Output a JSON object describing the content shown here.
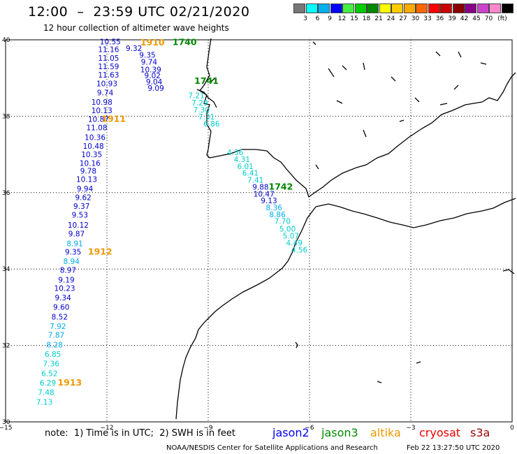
{
  "header": {
    "title": "12:00  –  23:59 UTC 02/21/2020",
    "subtitle": "12 hour collection of altimeter wave heights"
  },
  "legend": {
    "unit": "(ft)",
    "colors": [
      "#777777",
      "#00ffff",
      "#00b0f0",
      "#0000ff",
      "#44ee44",
      "#00cc00",
      "#008800",
      "#ffff00",
      "#ffcc00",
      "#ffaa00",
      "#ff6600",
      "#ff0000",
      "#cc0000",
      "#880000",
      "#880088",
      "#cc44cc",
      "#ff88cc",
      "#000000"
    ],
    "labels": [
      "3",
      "6",
      "9",
      "12",
      "15",
      "18",
      "21",
      "24",
      "27",
      "30",
      "33",
      "36",
      "39",
      "42",
      "45",
      "70"
    ]
  },
  "axes": {
    "x_ticks": [
      {
        "lon": -15,
        "label": "−15"
      },
      {
        "lon": -12,
        "label": "−12"
      },
      {
        "lon": -9,
        "label": "−9"
      },
      {
        "lon": -6,
        "label": "−6"
      },
      {
        "lon": -3,
        "label": "−3"
      },
      {
        "lon": 0,
        "label": "0"
      }
    ],
    "y_ticks": [
      {
        "lat": 40,
        "label": "40"
      },
      {
        "lat": 38,
        "label": "38"
      },
      {
        "lat": 36,
        "label": "36"
      },
      {
        "lat": 34,
        "label": "34"
      },
      {
        "lat": 32,
        "label": "32"
      },
      {
        "lat": 30,
        "label": "30"
      }
    ],
    "lon_range": [
      -15,
      0
    ],
    "lat_range": [
      30,
      40
    ],
    "grid": "dotted"
  },
  "tracks": [
    {
      "satellite": "jason2",
      "points": [
        {
          "lon": -11.9,
          "lat": 39.88,
          "v": "10.55",
          "c": "#0000cc"
        },
        {
          "lon": -11.2,
          "lat": 39.71,
          "v": "9.32",
          "c": "#0000cc"
        },
        {
          "lon": -11.95,
          "lat": 39.68,
          "v": "11.16",
          "c": "#0000cc"
        },
        {
          "lon": -10.8,
          "lat": 39.53,
          "v": "9.35",
          "c": "#0000cc"
        },
        {
          "lon": -11.95,
          "lat": 39.45,
          "v": "11.05",
          "c": "#0000cc"
        },
        {
          "lon": -10.75,
          "lat": 39.35,
          "v": "9.74",
          "c": "#0000cc"
        },
        {
          "lon": -11.95,
          "lat": 39.23,
          "v": "11.59",
          "c": "#0000cc"
        },
        {
          "lon": -10.7,
          "lat": 39.15,
          "v": "10.39",
          "c": "#0000cc"
        },
        {
          "lon": -11.95,
          "lat": 39.01,
          "v": "11.63",
          "c": "#0000cc"
        },
        {
          "lon": -10.65,
          "lat": 38.99,
          "v": "9.02",
          "c": "#0000cc"
        },
        {
          "lon": -10.6,
          "lat": 38.83,
          "v": "9.04",
          "c": "#0000cc"
        },
        {
          "lon": -12.0,
          "lat": 38.78,
          "v": "10.93",
          "c": "#0000cc"
        },
        {
          "lon": -10.55,
          "lat": 38.67,
          "v": "9.09",
          "c": "#0000cc"
        },
        {
          "lon": -12.05,
          "lat": 38.55,
          "v": "9.74",
          "c": "#0000cc"
        },
        {
          "lon": -12.15,
          "lat": 38.3,
          "v": "10.98",
          "c": "#0000cc"
        },
        {
          "lon": -12.15,
          "lat": 38.08,
          "v": "10.13",
          "c": "#0000cc"
        },
        {
          "lon": -12.25,
          "lat": 37.85,
          "v": "10.87",
          "c": "#0000cc"
        },
        {
          "lon": -12.3,
          "lat": 37.63,
          "v": "11.08",
          "c": "#0000cc"
        },
        {
          "lon": -12.35,
          "lat": 37.38,
          "v": "10.36",
          "c": "#0000cc"
        },
        {
          "lon": -12.4,
          "lat": 37.15,
          "v": "10.48",
          "c": "#0000cc"
        },
        {
          "lon": -12.45,
          "lat": 36.93,
          "v": "10.35",
          "c": "#0000cc"
        },
        {
          "lon": -12.5,
          "lat": 36.7,
          "v": "10.16",
          "c": "#0000cc"
        },
        {
          "lon": -12.55,
          "lat": 36.5,
          "v": "9.78",
          "c": "#0000cc"
        },
        {
          "lon": -12.6,
          "lat": 36.28,
          "v": "10.13",
          "c": "#0000cc"
        },
        {
          "lon": -12.65,
          "lat": 36.03,
          "v": "9.94",
          "c": "#0000cc"
        },
        {
          "lon": -12.7,
          "lat": 35.8,
          "v": "9.62",
          "c": "#0000cc"
        },
        {
          "lon": -12.75,
          "lat": 35.58,
          "v": "9.37",
          "c": "#0000cc"
        },
        {
          "lon": -12.8,
          "lat": 35.35,
          "v": "9.53",
          "c": "#0000cc"
        },
        {
          "lon": -12.85,
          "lat": 35.08,
          "v": "10.12",
          "c": "#0000cc"
        },
        {
          "lon": -12.9,
          "lat": 34.85,
          "v": "9.87",
          "c": "#0000cc"
        },
        {
          "lon": -12.95,
          "lat": 34.6,
          "v": "8.91",
          "c": "#00aaee"
        },
        {
          "lon": -13.0,
          "lat": 34.38,
          "v": "9.35",
          "c": "#0000cc"
        },
        {
          "lon": -13.05,
          "lat": 34.13,
          "v": "8.94",
          "c": "#00aaee"
        },
        {
          "lon": -13.15,
          "lat": 33.9,
          "v": "8.97",
          "c": "#0000cc"
        },
        {
          "lon": -13.2,
          "lat": 33.65,
          "v": "9.19",
          "c": "#0000cc"
        },
        {
          "lon": -13.25,
          "lat": 33.43,
          "v": "10.23",
          "c": "#0000cc"
        },
        {
          "lon": -13.3,
          "lat": 33.18,
          "v": "9.34",
          "c": "#0000cc"
        },
        {
          "lon": -13.35,
          "lat": 32.93,
          "v": "9.60",
          "c": "#0000cc"
        },
        {
          "lon": -13.4,
          "lat": 32.68,
          "v": "8.52",
          "c": "#0000cc"
        },
        {
          "lon": -13.45,
          "lat": 32.43,
          "v": "7.92",
          "c": "#00aaee"
        },
        {
          "lon": -13.5,
          "lat": 32.2,
          "v": "7.87",
          "c": "#00aaee"
        },
        {
          "lon": -13.55,
          "lat": 31.95,
          "v": "8.28",
          "c": "#00aaee"
        },
        {
          "lon": -13.6,
          "lat": 31.7,
          "v": "6.85",
          "c": "#00cccc"
        },
        {
          "lon": -13.65,
          "lat": 31.45,
          "v": "7.36",
          "c": "#00cccc"
        },
        {
          "lon": -13.7,
          "lat": 31.2,
          "v": "6.52",
          "c": "#00cccc"
        },
        {
          "lon": -13.75,
          "lat": 30.95,
          "v": "6.29",
          "c": "#00cccc"
        },
        {
          "lon": -13.8,
          "lat": 30.7,
          "v": "7.48",
          "c": "#00cccc"
        },
        {
          "lon": -13.85,
          "lat": 30.45,
          "v": "7.13",
          "c": "#00cccc"
        }
      ]
    },
    {
      "satellite": "jason3",
      "points": [
        {
          "lon": -9.35,
          "lat": 38.47,
          "v": "7.21",
          "c": "#00cccc"
        },
        {
          "lon": -9.25,
          "lat": 38.28,
          "v": "7.29",
          "c": "#00cccc"
        },
        {
          "lon": -9.2,
          "lat": 38.1,
          "v": "7.30",
          "c": "#00cccc"
        },
        {
          "lon": -9.05,
          "lat": 37.92,
          "v": "7.31",
          "c": "#00cccc"
        },
        {
          "lon": -8.9,
          "lat": 37.73,
          "v": "6.86",
          "c": "#00cccc"
        },
        {
          "lon": -8.2,
          "lat": 36.98,
          "v": "4.36",
          "c": "#00cccc"
        },
        {
          "lon": -8.0,
          "lat": 36.8,
          "v": "4.31",
          "c": "#00cccc"
        },
        {
          "lon": -7.9,
          "lat": 36.62,
          "v": "6.01",
          "c": "#00cccc"
        },
        {
          "lon": -7.75,
          "lat": 36.44,
          "v": "6.41",
          "c": "#00cccc"
        },
        {
          "lon": -7.6,
          "lat": 36.26,
          "v": "7.41",
          "c": "#00cccc"
        },
        {
          "lon": -7.45,
          "lat": 36.08,
          "v": "9.88",
          "c": "#0000cc"
        },
        {
          "lon": -7.35,
          "lat": 35.9,
          "v": "10.47",
          "c": "#0000cc"
        },
        {
          "lon": -7.2,
          "lat": 35.72,
          "v": "9.13",
          "c": "#0000cc"
        },
        {
          "lon": -7.05,
          "lat": 35.54,
          "v": "8.36",
          "c": "#00aaee"
        },
        {
          "lon": -6.95,
          "lat": 35.36,
          "v": "8.86",
          "c": "#00aaee"
        },
        {
          "lon": -6.8,
          "lat": 35.18,
          "v": "7.70",
          "c": "#00cccc"
        },
        {
          "lon": -6.65,
          "lat": 34.98,
          "v": "5.00",
          "c": "#00cccc"
        },
        {
          "lon": -6.55,
          "lat": 34.8,
          "v": "5.07",
          "c": "#00cccc"
        },
        {
          "lon": -6.45,
          "lat": 34.62,
          "v": "4.49",
          "c": "#00cccc"
        },
        {
          "lon": -6.3,
          "lat": 34.43,
          "v": "4.56",
          "c": "#00cccc"
        }
      ]
    }
  ],
  "time_labels": [
    {
      "lon": -10.65,
      "lat": 39.85,
      "text": "1910",
      "c": "#ee9900"
    },
    {
      "lon": -9.7,
      "lat": 39.86,
      "text": "1740",
      "c": "#008800"
    },
    {
      "lon": -9.05,
      "lat": 38.85,
      "text": "1741",
      "c": "#008800"
    },
    {
      "lon": -11.8,
      "lat": 37.85,
      "text": "1911",
      "c": "#ee9900"
    },
    {
      "lon": -6.85,
      "lat": 36.08,
      "text": "1742",
      "c": "#008800"
    },
    {
      "lon": -12.2,
      "lat": 34.38,
      "text": "1912",
      "c": "#ee9900"
    },
    {
      "lon": -13.1,
      "lat": 30.95,
      "text": "1913",
      "c": "#ee9900"
    }
  ],
  "footer": {
    "note": "note:  1) Time is in UTC;  2) SWH is in feet",
    "credit": "NOAA/NESDIS Center for Satellite Applications and Research",
    "timestamp": "Feb 22 13:27:50 UTC 2020",
    "satellites": [
      {
        "name": "jason2",
        "color": "#0000ee"
      },
      {
        "name": "jason3",
        "color": "#008800"
      },
      {
        "name": "altika",
        "color": "#ee9900"
      },
      {
        "name": "cryosat",
        "color": "#ee0000"
      },
      {
        "name": "s3a",
        "color": "#990000"
      }
    ]
  }
}
